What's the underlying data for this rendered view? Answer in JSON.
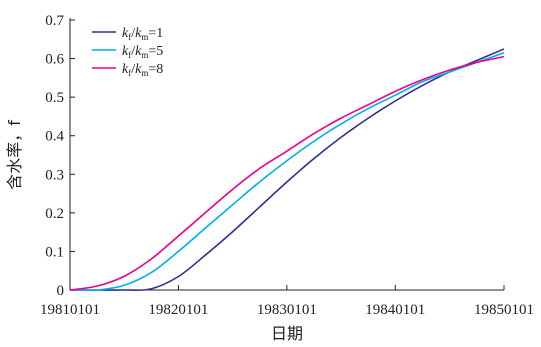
{
  "chart_data": {
    "type": "line",
    "xlabel": "日期",
    "ylabel": "含水率，f",
    "xlim": [
      "1981-01-01",
      "1985-01-01"
    ],
    "ylim": [
      0,
      0.7
    ],
    "x_ticks": [
      "19810101",
      "19820101",
      "19830101",
      "19840101",
      "19850101"
    ],
    "y_ticks": [
      "0",
      "0.1",
      "0.2",
      "0.3",
      "0.4",
      "0.5",
      "0.6",
      "0.7"
    ],
    "grid": false,
    "legend_position": "top-left",
    "x": [
      "1981-01-01",
      "1981-04-01",
      "1981-07-01",
      "1981-10-01",
      "1982-01-01",
      "1982-04-01",
      "1982-07-01",
      "1982-10-01",
      "1983-01-01",
      "1983-04-01",
      "1983-07-01",
      "1983-10-01",
      "1984-01-01",
      "1984-04-01",
      "1984-07-01",
      "1984-10-01",
      "1985-01-01"
    ],
    "series": [
      {
        "name_parts": {
          "k": "k",
          "sub1": "f",
          "slash": "/",
          "sub2": "m",
          "eq": "=1"
        },
        "color": "#2e3192",
        "values": [
          0.0,
          0.0,
          0.0,
          0.003,
          0.035,
          0.09,
          0.15,
          0.215,
          0.28,
          0.34,
          0.395,
          0.445,
          0.49,
          0.53,
          0.565,
          0.595,
          0.625
        ]
      },
      {
        "name_parts": {
          "k": "k",
          "sub1": "f",
          "slash": "/",
          "sub2": "m",
          "eq": "=5"
        },
        "color": "#00aeef",
        "values": [
          0.0,
          0.0,
          0.012,
          0.045,
          0.1,
          0.16,
          0.22,
          0.28,
          0.335,
          0.385,
          0.43,
          0.47,
          0.505,
          0.54,
          0.565,
          0.59,
          0.615
        ]
      },
      {
        "name_parts": {
          "k": "k",
          "sub1": "f",
          "slash": "/",
          "sub2": "m",
          "eq": "=8"
        },
        "color": "#ec008c",
        "values": [
          0.0,
          0.01,
          0.035,
          0.08,
          0.14,
          0.2,
          0.26,
          0.315,
          0.36,
          0.405,
          0.445,
          0.48,
          0.515,
          0.545,
          0.57,
          0.59,
          0.605
        ]
      }
    ]
  }
}
